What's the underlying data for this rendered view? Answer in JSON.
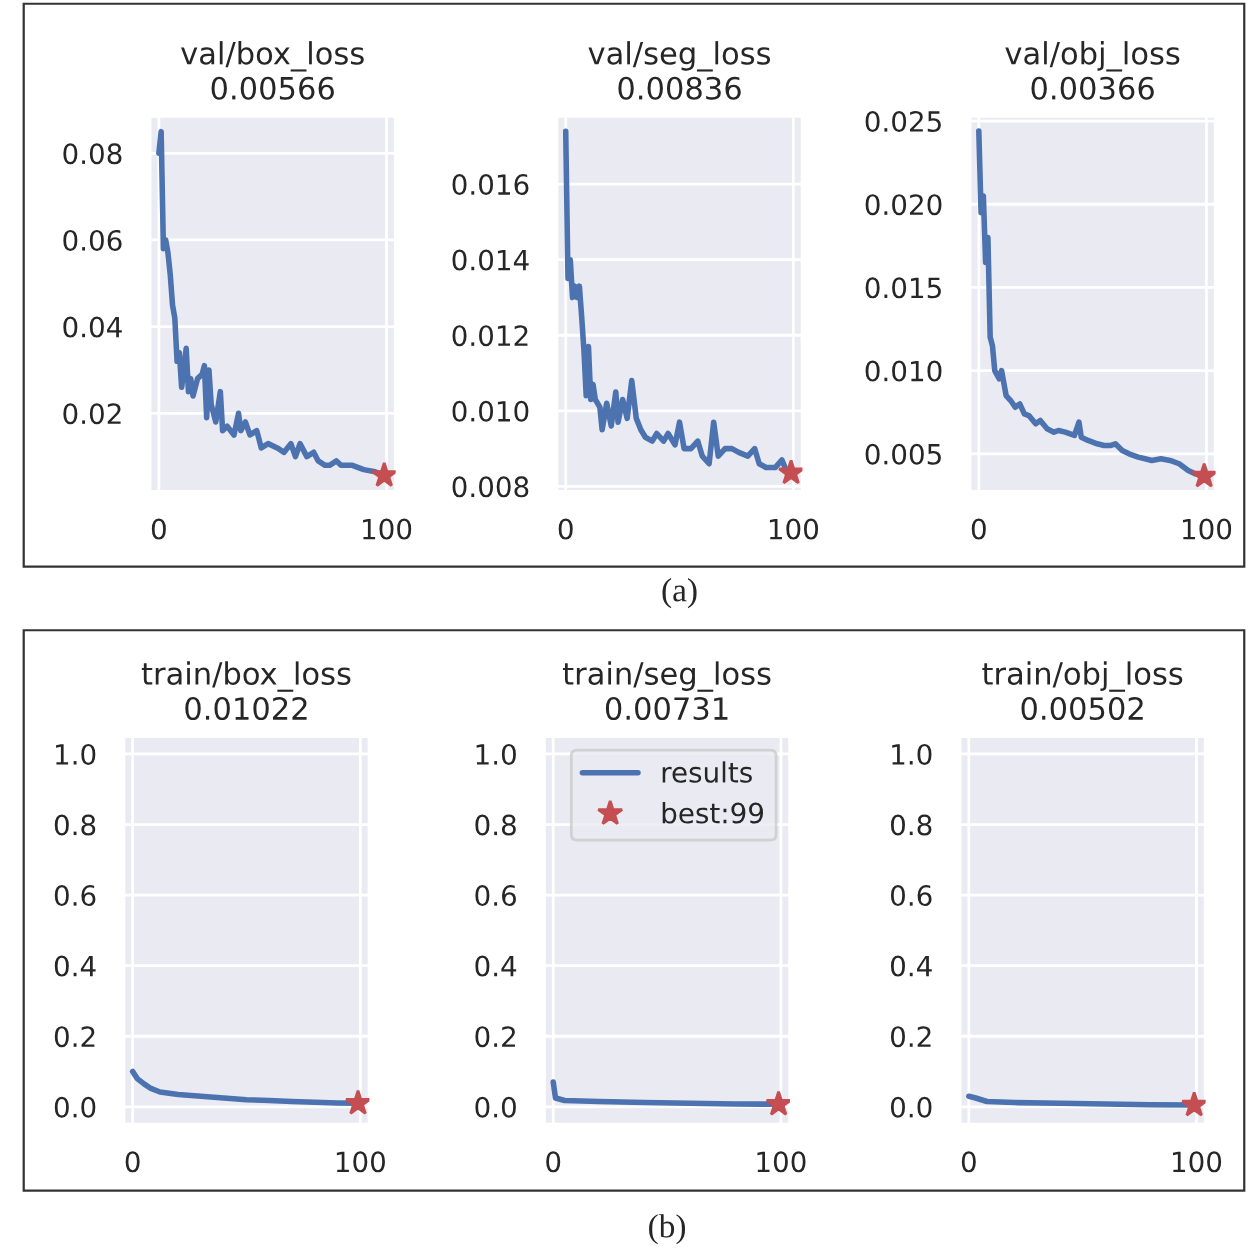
{
  "chart_data": [
    {
      "type": "line",
      "title": "val/box_loss\n0.00566",
      "xlim": [
        -4,
        104
      ],
      "xticks": [
        0,
        100
      ],
      "ylim": [
        0.0019,
        0.0886
      ],
      "yticks": [
        0.02,
        0.04,
        0.06,
        0.08
      ],
      "grid": true,
      "legend": false,
      "series": [
        {
          "color": "#4c72b0",
          "x": [
            0,
            1,
            2,
            3,
            4,
            5,
            6,
            7,
            8,
            9,
            10,
            11,
            12,
            13,
            14,
            15,
            17,
            19,
            20,
            21,
            22,
            23,
            25,
            27,
            28,
            30,
            33,
            35,
            36,
            38,
            40,
            43,
            45,
            48,
            52,
            55,
            58,
            60,
            62,
            65,
            68,
            70,
            73,
            75,
            78,
            80,
            85,
            90,
            95,
            99
          ],
          "values": [
            0.08,
            0.085,
            0.058,
            0.06,
            0.057,
            0.052,
            0.045,
            0.042,
            0.032,
            0.034,
            0.026,
            0.03,
            0.035,
            0.025,
            0.028,
            0.024,
            0.028,
            0.029,
            0.031,
            0.019,
            0.03,
            0.022,
            0.018,
            0.025,
            0.016,
            0.017,
            0.015,
            0.02,
            0.016,
            0.018,
            0.015,
            0.016,
            0.012,
            0.013,
            0.012,
            0.011,
            0.013,
            0.01,
            0.013,
            0.01,
            0.011,
            0.009,
            0.008,
            0.008,
            0.009,
            0.008,
            0.008,
            0.007,
            0.0065,
            0.00566
          ]
        },
        {
          "type": "scatter",
          "marker": "star",
          "color": "#c44e52",
          "x": [
            99
          ],
          "values": [
            0.00566
          ]
        }
      ]
    },
    {
      "type": "line",
      "title": "val/seg_loss\n0.00836",
      "xlim": [
        -4,
        104
      ],
      "xticks": [
        0,
        100
      ],
      "ylim": [
        0.00786,
        0.0178
      ],
      "yticks": [
        0.008,
        {
          "value": 0.01,
          "label": "0.010"
        },
        0.012,
        0.014,
        0.016
      ],
      "grid": true,
      "legend": false,
      "series": [
        {
          "color": "#4c72b0",
          "x": [
            0,
            1,
            2,
            3,
            4,
            5,
            6,
            7,
            8,
            9,
            10,
            11,
            12,
            13,
            15,
            16,
            18,
            20,
            22,
            23,
            25,
            27,
            29,
            31,
            33,
            35,
            38,
            40,
            43,
            45,
            48,
            50,
            52,
            55,
            58,
            60,
            63,
            65,
            67,
            70,
            73,
            76,
            80,
            83,
            85,
            88,
            92,
            95,
            97,
            99
          ],
          "values": [
            0.0174,
            0.0135,
            0.014,
            0.013,
            0.0133,
            0.013,
            0.0133,
            0.0125,
            0.0116,
            0.0104,
            0.0117,
            0.0103,
            0.0107,
            0.0103,
            0.0101,
            0.0095,
            0.0102,
            0.0096,
            0.0105,
            0.0097,
            0.0103,
            0.0098,
            0.0108,
            0.0098,
            0.0095,
            0.0093,
            0.0092,
            0.0094,
            0.0092,
            0.0094,
            0.0091,
            0.0097,
            0.009,
            0.009,
            0.0092,
            0.0088,
            0.0086,
            0.0097,
            0.0088,
            0.009,
            0.009,
            0.0089,
            0.0088,
            0.009,
            0.0086,
            0.0085,
            0.0085,
            0.0087,
            0.0084,
            0.00836
          ]
        },
        {
          "type": "scatter",
          "marker": "star",
          "color": "#c44e52",
          "x": [
            99
          ],
          "values": [
            0.00836
          ]
        }
      ],
      "annotations": [
        "(a)"
      ]
    },
    {
      "type": "line",
      "title": "val/obj_loss\n0.00366",
      "xlim": [
        -4,
        104
      ],
      "xticks": [
        0,
        100
      ],
      "ylim": [
        0.00272,
        0.0253
      ],
      "yticks": [
        0.005,
        {
          "value": 0.01,
          "label": "0.010"
        },
        0.015,
        {
          "value": 0.02,
          "label": "0.020"
        },
        0.025
      ],
      "grid": true,
      "legend": false,
      "series": [
        {
          "color": "#4c72b0",
          "x": [
            0,
            1,
            2,
            3,
            4,
            5,
            6,
            7,
            9,
            10,
            12,
            14,
            16,
            18,
            20,
            22,
            25,
            27,
            30,
            33,
            35,
            38,
            42,
            44,
            45,
            48,
            52,
            55,
            58,
            60,
            63,
            66,
            70,
            73,
            76,
            80,
            84,
            88,
            92,
            95,
            99
          ],
          "values": [
            0.0244,
            0.0195,
            0.0205,
            0.0165,
            0.018,
            0.012,
            0.0115,
            0.01,
            0.0095,
            0.01,
            0.0085,
            0.0082,
            0.0078,
            0.008,
            0.0074,
            0.0073,
            0.0068,
            0.007,
            0.0065,
            0.0063,
            0.0064,
            0.0063,
            0.0061,
            0.0069,
            0.006,
            0.0058,
            0.0056,
            0.0055,
            0.0055,
            0.0056,
            0.0052,
            0.005,
            0.0048,
            0.0047,
            0.0046,
            0.0047,
            0.0046,
            0.0044,
            0.004,
            0.0038,
            0.00366
          ]
        },
        {
          "type": "scatter",
          "marker": "star",
          "color": "#c44e52",
          "x": [
            99
          ],
          "values": [
            0.00366
          ]
        }
      ]
    },
    {
      "type": "line",
      "title": "train/box_loss\n0.01022",
      "xlim": [
        -4,
        104
      ],
      "xticks": [
        0,
        100
      ],
      "ylim": [
        -0.05,
        1.05
      ],
      "yticks": [
        {
          "value": 0,
          "label": "0.0"
        },
        0.2,
        0.4,
        0.6,
        0.8,
        {
          "value": 1,
          "label": "1.0"
        }
      ],
      "grid": true,
      "legend": false,
      "series": [
        {
          "color": "#4c72b0",
          "x": [
            0,
            2,
            5,
            8,
            12,
            20,
            30,
            40,
            50,
            60,
            70,
            80,
            90,
            99
          ],
          "values": [
            0.1,
            0.08,
            0.065,
            0.052,
            0.042,
            0.035,
            0.03,
            0.025,
            0.02,
            0.018,
            0.015,
            0.013,
            0.011,
            0.01022
          ]
        },
        {
          "type": "scatter",
          "marker": "star",
          "color": "#c44e52",
          "x": [
            99
          ],
          "values": [
            0.01022
          ]
        }
      ]
    },
    {
      "type": "line",
      "title": "train/seg_loss\n0.00731",
      "xlim": [
        -4,
        104
      ],
      "xticks": [
        0,
        100
      ],
      "ylim": [
        -0.05,
        1.05
      ],
      "yticks": [
        {
          "value": 0,
          "label": "0.0"
        },
        0.2,
        0.4,
        0.6,
        0.8,
        {
          "value": 1,
          "label": "1.0"
        }
      ],
      "grid": true,
      "legend": "top right",
      "series": [
        {
          "name": "results",
          "color": "#4c72b0",
          "x": [
            0,
            1,
            5,
            20,
            40,
            60,
            80,
            99
          ],
          "values": [
            0.07,
            0.025,
            0.018,
            0.015,
            0.012,
            0.01,
            0.008,
            0.00731
          ]
        },
        {
          "name": "best:99",
          "type": "scatter",
          "marker": "star",
          "color": "#c44e52",
          "x": [
            99
          ],
          "values": [
            0.00731
          ]
        }
      ],
      "annotations": [
        "(b)"
      ]
    },
    {
      "type": "line",
      "title": "train/obj_loss\n0.00502",
      "xlim": [
        -4,
        104
      ],
      "xticks": [
        0,
        100
      ],
      "ylim": [
        -0.05,
        1.05
      ],
      "yticks": [
        {
          "value": 0,
          "label": "0.0"
        },
        0.2,
        0.4,
        0.6,
        0.8,
        {
          "value": 1,
          "label": "1.0"
        }
      ],
      "grid": true,
      "legend": false,
      "series": [
        {
          "color": "#4c72b0",
          "x": [
            0,
            3,
            8,
            20,
            40,
            60,
            80,
            99
          ],
          "values": [
            0.03,
            0.025,
            0.015,
            0.012,
            0.01,
            0.008,
            0.006,
            0.00502
          ]
        },
        {
          "type": "scatter",
          "marker": "star",
          "color": "#c44e52",
          "x": [
            99
          ],
          "values": [
            0.00502
          ]
        }
      ]
    }
  ]
}
